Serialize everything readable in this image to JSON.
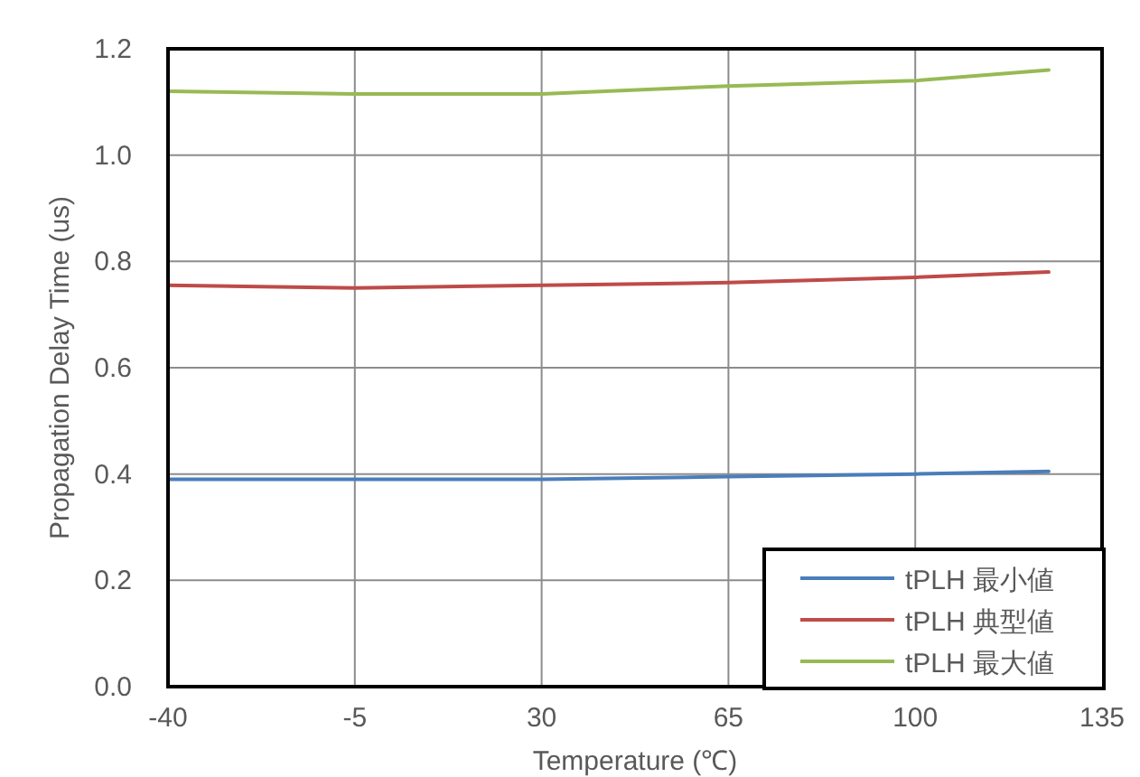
{
  "chart_data": {
    "type": "line",
    "xlabel": "Temperature (℃)",
    "ylabel": "Propagation Delay Time (us)",
    "x": [
      -40,
      -5,
      30,
      65,
      100,
      125
    ],
    "series": [
      {
        "name": "tPLH 最小値",
        "color": "#4a7ebb",
        "values": [
          0.39,
          0.39,
          0.39,
          0.395,
          0.4,
          0.405
        ]
      },
      {
        "name": "tPLH 典型値",
        "color": "#be4b48",
        "values": [
          0.755,
          0.75,
          0.755,
          0.76,
          0.77,
          0.78
        ]
      },
      {
        "name": "tPLH 最大値",
        "color": "#98b954",
        "values": [
          1.12,
          1.115,
          1.115,
          1.13,
          1.14,
          1.16
        ]
      }
    ],
    "xlim": [
      -40,
      135
    ],
    "xticks": [
      -40,
      -5,
      30,
      65,
      100,
      135
    ],
    "ylim": [
      0,
      1.2
    ],
    "yticks": [
      {
        "value": 0,
        "label": "0.0"
      },
      {
        "value": 0.2,
        "label": "0.2"
      },
      {
        "value": 0.4,
        "label": "0.4"
      },
      {
        "value": 0.6,
        "label": "0.6"
      },
      {
        "value": 0.8,
        "label": "0.8"
      },
      {
        "value": 1,
        "label": "1.0"
      },
      {
        "value": 1.2,
        "label": "1.2"
      }
    ],
    "grid": true,
    "legend": "bottom right",
    "marker": "none",
    "line_style": "solid"
  }
}
